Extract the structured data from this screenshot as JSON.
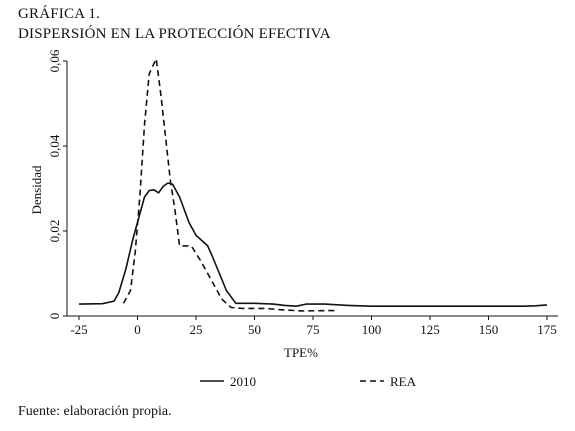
{
  "figure": {
    "title_line1": "GRÁFICA 1.",
    "title_line2": "DISPERSIÓN EN LA PROTECCIÓN EFECTIVA",
    "source": "Fuente: elaboración propia."
  },
  "chart_data": {
    "type": "line",
    "xlabel": "TPE%",
    "ylabel": "Densidad",
    "xlim": [
      -30,
      175
    ],
    "ylim": [
      0,
      0.06
    ],
    "x_ticks": [
      -25,
      0,
      25,
      50,
      75,
      100,
      125,
      150,
      175
    ],
    "x_tick_labels": [
      "-25",
      "0",
      "25",
      "50",
      "75",
      "100",
      "125",
      "150",
      "175"
    ],
    "y_ticks": [
      0,
      0.02,
      0.04,
      0.06
    ],
    "y_tick_labels": [
      "0",
      "0,02",
      "0,04",
      "0,06"
    ],
    "legend_position": "bottom",
    "grid": false,
    "series": [
      {
        "name": "2010",
        "style": "solid",
        "color": "#111111",
        "points": [
          [
            -25,
            0.0028
          ],
          [
            -15,
            0.0029
          ],
          [
            -10,
            0.0035
          ],
          [
            -8,
            0.0055
          ],
          [
            -5,
            0.011
          ],
          [
            -2,
            0.018
          ],
          [
            1,
            0.024
          ],
          [
            3,
            0.028
          ],
          [
            5,
            0.0295
          ],
          [
            7,
            0.0297
          ],
          [
            9,
            0.029
          ],
          [
            11,
            0.0305
          ],
          [
            13,
            0.0313
          ],
          [
            15,
            0.031
          ],
          [
            18,
            0.028
          ],
          [
            22,
            0.022
          ],
          [
            25,
            0.019
          ],
          [
            28,
            0.0175
          ],
          [
            30,
            0.0165
          ],
          [
            32,
            0.014
          ],
          [
            35,
            0.01
          ],
          [
            38,
            0.006
          ],
          [
            42,
            0.003
          ],
          [
            50,
            0.003
          ],
          [
            58,
            0.0028
          ],
          [
            63,
            0.0025
          ],
          [
            68,
            0.0023
          ],
          [
            72,
            0.0028
          ],
          [
            80,
            0.0028
          ],
          [
            90,
            0.0025
          ],
          [
            100,
            0.0023
          ],
          [
            130,
            0.0023
          ],
          [
            165,
            0.0023
          ],
          [
            170,
            0.0024
          ],
          [
            175,
            0.0026
          ]
        ]
      },
      {
        "name": "REA",
        "style": "dashed",
        "color": "#111111",
        "points": [
          [
            -6,
            0.003
          ],
          [
            -3,
            0.006
          ],
          [
            -1,
            0.015
          ],
          [
            1,
            0.028
          ],
          [
            3,
            0.045
          ],
          [
            5,
            0.057
          ],
          [
            8,
            0.0605
          ],
          [
            10,
            0.052
          ],
          [
            12,
            0.042
          ],
          [
            14,
            0.032
          ],
          [
            16,
            0.025
          ],
          [
            18,
            0.0165
          ],
          [
            23,
            0.0165
          ],
          [
            27,
            0.013
          ],
          [
            32,
            0.008
          ],
          [
            36,
            0.004
          ],
          [
            40,
            0.002
          ],
          [
            45,
            0.0018
          ],
          [
            55,
            0.0018
          ],
          [
            60,
            0.0015
          ],
          [
            70,
            0.0012
          ],
          [
            85,
            0.0013
          ]
        ]
      }
    ]
  }
}
